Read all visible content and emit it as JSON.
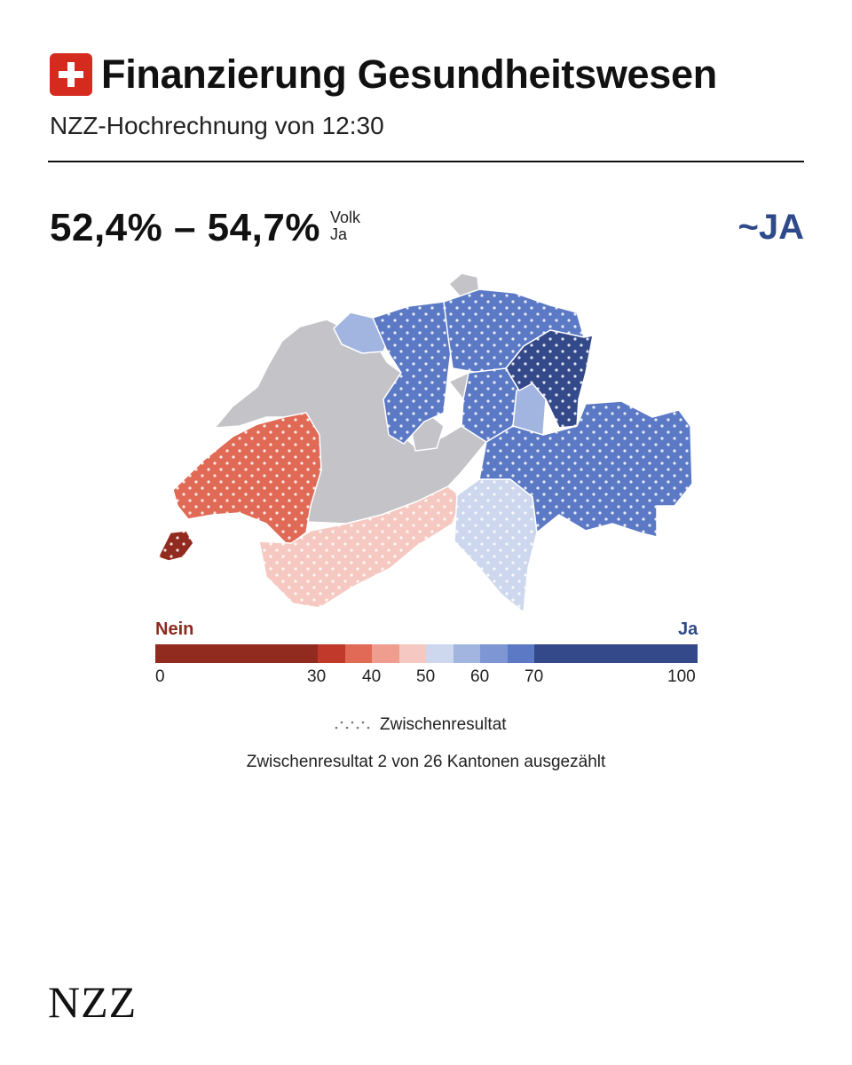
{
  "header": {
    "title": "Finanzierung Gesundheitswesen",
    "subtitle": "NZZ-Hochrechnung von 12:30",
    "flag_icon": "swiss-flag-icon"
  },
  "result": {
    "range": "52,4% – 54,7%",
    "label_line1": "Volk",
    "label_line2": "Ja",
    "verdict": "~JA"
  },
  "legend": {
    "nein_label": "Nein",
    "ja_label": "Ja",
    "ticks": [
      "0",
      "30",
      "40",
      "50",
      "60",
      "70",
      "100"
    ],
    "colors": [
      "#922b1f",
      "#c0392b",
      "#e06a55",
      "#ee9d8f",
      "#f5c9c1",
      "#cdd7ee",
      "#a2b4e0",
      "#7e97d4",
      "#5b79c5",
      "#34498a"
    ],
    "interim_label": "Zwischenresultat"
  },
  "note": "Zwischenresultat 2 von 26 Kantonen ausgezählt",
  "colors": {
    "accent_ja": "#2f4a8a",
    "accent_nein": "#8c2a1e",
    "no_data": "#c3c3c8"
  },
  "footer": {
    "logo": "NZZ"
  }
}
